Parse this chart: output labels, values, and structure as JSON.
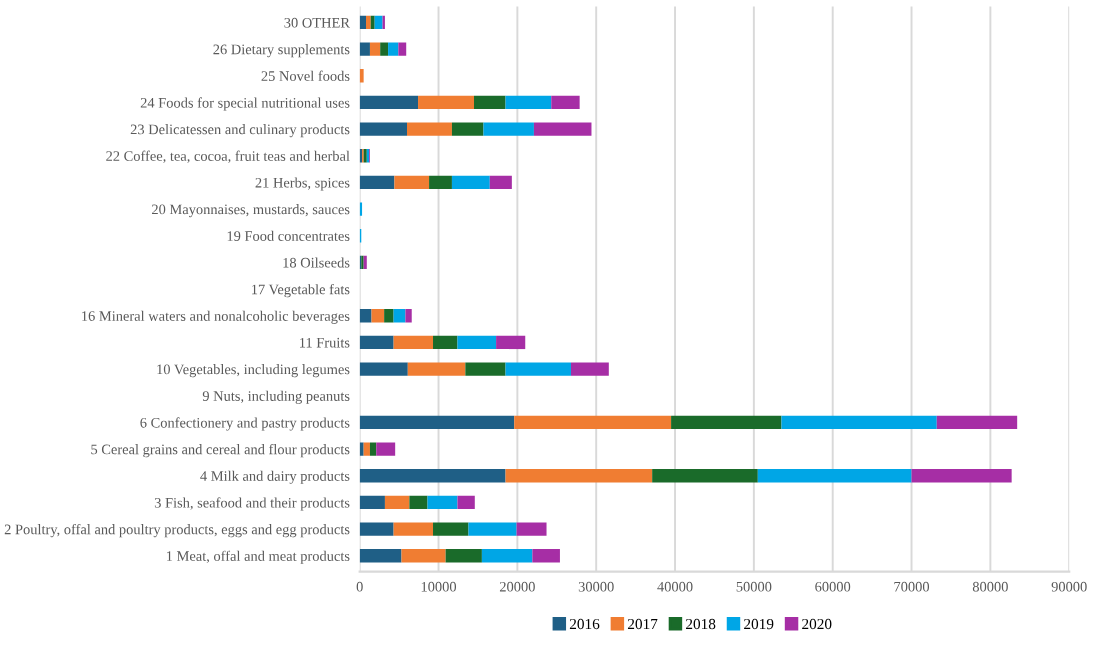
{
  "chart_data": {
    "type": "bar",
    "orientation": "horizontal",
    "stacked": true,
    "categories": [
      "30 OTHER",
      "26 Dietary supplements",
      "25 Novel foods",
      "24 Foods for special nutritional uses",
      "23 Delicatessen and culinary products",
      "22 Coffee, tea, cocoa, fruit teas and herbal",
      "21 Herbs, spices",
      "20 Mayonnaises, mustards, sauces",
      "19 Food concentrates",
      "18 Oilseeds",
      "17 Vegetable fats",
      "16 Mineral waters and nonalcoholic beverages",
      "11 Fruits",
      "10 Vegetables, including legumes",
      "9 Nuts, including peanuts",
      "6 Confectionery and pastry products",
      "5 Cereal grains and cereal and flour products",
      "4 Milk and dairy products",
      "3 Fish, seafood and their products",
      "2 Poultry, offal and poultry products, eggs and egg products",
      "1 Meat, offal and meat products"
    ],
    "series": [
      {
        "name": "2016",
        "color": "#1f5f86",
        "values": [
          800,
          1300,
          null,
          7400,
          6000,
          300,
          4400,
          null,
          null,
          200,
          null,
          1500,
          4300,
          6100,
          null,
          19600,
          500,
          18500,
          3200,
          4300,
          5300
        ]
      },
      {
        "name": "2017",
        "color": "#f07d32",
        "values": [
          600,
          1300,
          500,
          7100,
          5700,
          200,
          4400,
          null,
          null,
          null,
          null,
          1600,
          5000,
          7300,
          null,
          19900,
          800,
          18600,
          3100,
          5000,
          5600
        ]
      },
      {
        "name": "2018",
        "color": "#1a6b2a",
        "values": [
          500,
          1000,
          null,
          4000,
          4000,
          400,
          2900,
          null,
          null,
          300,
          null,
          1200,
          3100,
          5100,
          null,
          14000,
          800,
          13400,
          2300,
          4500,
          4600
        ]
      },
      {
        "name": "2019",
        "color": "#00a6e6",
        "values": [
          1000,
          1300,
          null,
          5800,
          6400,
          300,
          4800,
          300,
          200,
          null,
          null,
          1500,
          4900,
          8300,
          null,
          19700,
          null,
          19500,
          3800,
          6100,
          6400
        ]
      },
      {
        "name": "2020",
        "color": "#a62ea5",
        "values": [
          300,
          1000,
          null,
          3600,
          7300,
          100,
          2800,
          null,
          null,
          400,
          null,
          800,
          3700,
          4800,
          null,
          10200,
          2400,
          12700,
          2200,
          3800,
          3500
        ]
      }
    ],
    "xlim": [
      0,
      90000
    ],
    "xticks": [
      0,
      10000,
      20000,
      30000,
      40000,
      50000,
      60000,
      70000,
      80000,
      90000
    ],
    "grid": "x",
    "legend": "bottom"
  }
}
